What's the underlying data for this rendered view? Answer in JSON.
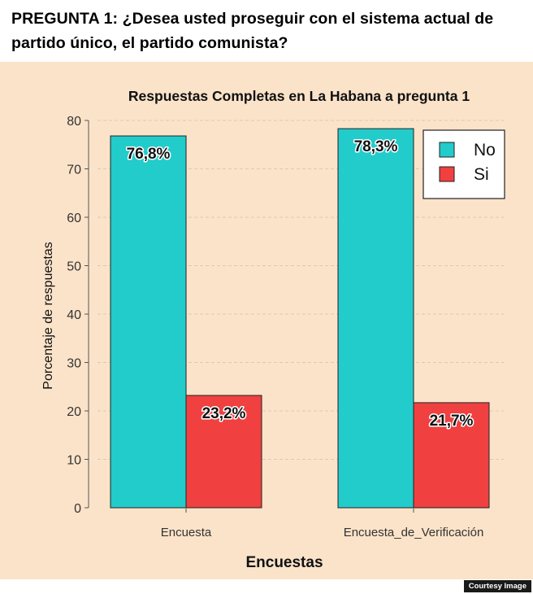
{
  "question": "PREGUNTA 1: ¿Desea usted proseguir con el sistema actual de partido único, el partido comunista?",
  "credit": "Courtesy Image",
  "colors": {
    "panel": "#fbe3c9",
    "No": "#22cccb",
    "Si": "#f04040",
    "grid": "#d9c9b6"
  },
  "chart_data": {
    "type": "bar",
    "title": "Respuestas Completas en La Habana a pregunta 1",
    "xlabel": "Encuestas",
    "ylabel": "Porcentaje de respuestas",
    "categories": [
      "Encuesta",
      "Encuesta_de_Verificación"
    ],
    "series": [
      {
        "name": "No",
        "values": [
          76.8,
          78.3
        ],
        "labels": [
          "76,8%",
          "78,3%"
        ]
      },
      {
        "name": "Si",
        "values": [
          23.2,
          21.7
        ],
        "labels": [
          "23,2%",
          "21,7%"
        ]
      }
    ],
    "ylim": [
      0,
      80
    ],
    "yticks": [
      0,
      10,
      20,
      30,
      40,
      50,
      60,
      70,
      80
    ],
    "grid": true,
    "legend": "top-right"
  }
}
